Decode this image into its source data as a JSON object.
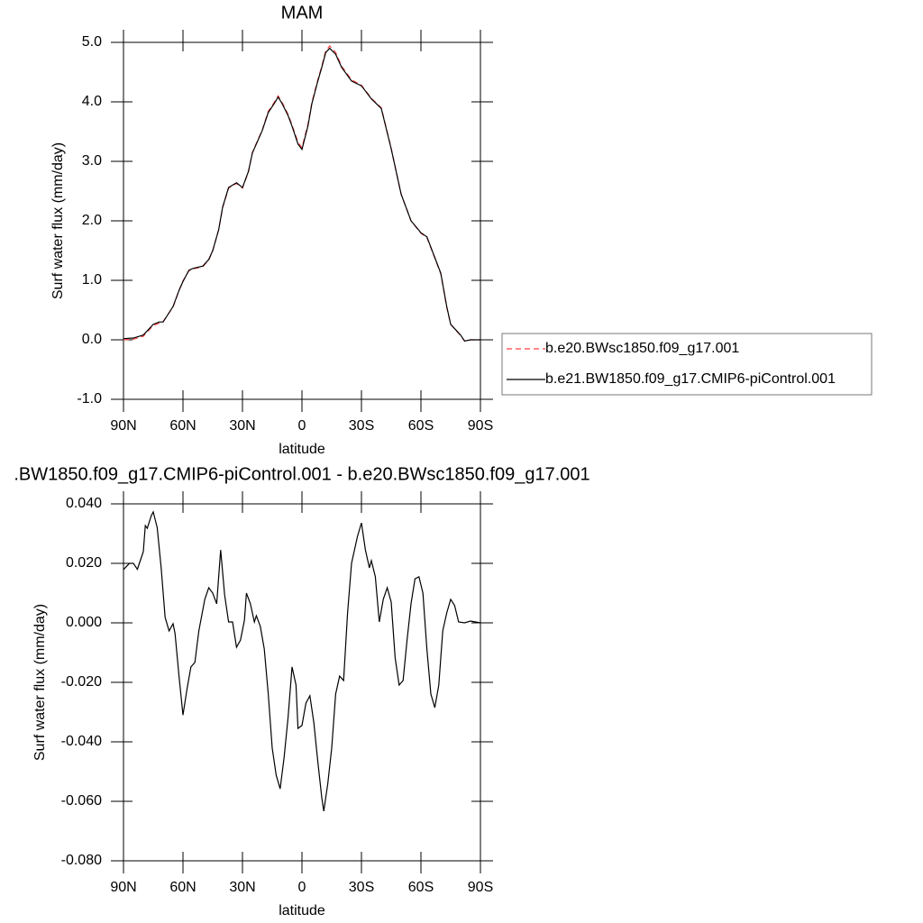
{
  "chart_data": [
    {
      "type": "line",
      "title": "MAM",
      "xlabel": "latitude",
      "ylabel": "Surf water flux (mm/day)",
      "xlim": [
        90,
        -90
      ],
      "xticks": [
        {
          "value": 90,
          "label": "90N"
        },
        {
          "value": 60,
          "label": "60N"
        },
        {
          "value": 30,
          "label": "30N"
        },
        0,
        {
          "value": -30,
          "label": "30S"
        },
        {
          "value": -60,
          "label": "60S"
        },
        {
          "value": -90,
          "label": "90S"
        }
      ],
      "ylim": [
        -1,
        5
      ],
      "yticks": [
        {
          "value": -1,
          "label": "-1.0"
        },
        {
          "value": 0,
          "label": "0.0"
        },
        {
          "value": 1,
          "label": "1.0"
        },
        {
          "value": 2,
          "label": "2.0"
        },
        {
          "value": 3,
          "label": "3.0"
        },
        {
          "value": 4,
          "label": "4.0"
        },
        {
          "value": 5,
          "label": "5.0"
        }
      ],
      "legend": "right",
      "x": [
        90,
        85,
        80,
        75,
        72,
        70,
        65,
        62,
        60,
        57,
        55,
        50,
        47,
        45,
        42,
        40,
        37,
        35,
        33,
        30,
        27,
        25,
        20,
        17,
        14,
        12,
        10,
        7,
        5,
        2,
        0,
        -3,
        -5,
        -8,
        -10,
        -12,
        -14,
        -17,
        -20,
        -25,
        -30,
        -35,
        -40,
        -45,
        -50,
        -55,
        -60,
        -63,
        -66,
        -70,
        -73,
        -75,
        -80,
        -82,
        -85,
        -90
      ],
      "series": [
        {
          "name": "b.e20.BWsc1850.f09_g17.001",
          "color": "#ff4040",
          "linestyle": "dashed",
          "values": [
            0.0,
            0.01,
            0.06,
            0.24,
            0.28,
            0.31,
            0.55,
            0.83,
            0.99,
            1.16,
            1.19,
            1.23,
            1.34,
            1.5,
            1.85,
            2.22,
            2.55,
            2.59,
            2.63,
            2.55,
            2.82,
            3.15,
            3.53,
            3.84,
            3.99,
            4.1,
            3.99,
            3.79,
            3.61,
            3.32,
            3.23,
            3.62,
            3.99,
            4.37,
            4.6,
            4.86,
            4.94,
            4.83,
            4.6,
            4.37,
            4.28,
            4.06,
            3.9,
            3.22,
            2.45,
            2.0,
            1.79,
            1.72,
            1.46,
            1.11,
            0.55,
            0.26,
            0.07,
            -0.02,
            0.0,
            0.0
          ]
        },
        {
          "name": "b.e21.BW1850.f09_g17.CMIP6-piControl.001",
          "color": "#000000",
          "linestyle": "solid",
          "values": [
            0.02,
            0.03,
            0.08,
            0.26,
            0.3,
            0.3,
            0.56,
            0.83,
            0.98,
            1.17,
            1.2,
            1.24,
            1.35,
            1.5,
            1.85,
            2.23,
            2.56,
            2.6,
            2.64,
            2.56,
            2.83,
            3.14,
            3.52,
            3.82,
            3.97,
            4.08,
            3.97,
            3.77,
            3.59,
            3.29,
            3.2,
            3.59,
            3.97,
            4.35,
            4.58,
            4.83,
            4.9,
            4.8,
            4.58,
            4.35,
            4.27,
            4.05,
            3.89,
            3.21,
            2.45,
            2.0,
            1.8,
            1.73,
            1.47,
            1.12,
            0.56,
            0.26,
            0.08,
            -0.02,
            0.0,
            0.0
          ]
        }
      ]
    },
    {
      "type": "line",
      "title": ".BW1850.f09_g17.CMIP6-piControl.001 - b.e20.BWsc1850.f09_g17.001",
      "xlabel": "latitude",
      "ylabel": "Surf water flux (mm/day)",
      "xlim": [
        90,
        -90
      ],
      "xticks": [
        {
          "value": 90,
          "label": "90N"
        },
        {
          "value": 60,
          "label": "60N"
        },
        {
          "value": 30,
          "label": "30N"
        },
        0,
        {
          "value": -30,
          "label": "30S"
        },
        {
          "value": -60,
          "label": "60S"
        },
        {
          "value": -90,
          "label": "90S"
        }
      ],
      "ylim": [
        -0.08,
        0.04
      ],
      "yticks": [
        {
          "value": -0.08,
          "label": "-0.080"
        },
        {
          "value": -0.06,
          "label": "-0.060"
        },
        {
          "value": -0.04,
          "label": "-0.040"
        },
        {
          "value": -0.02,
          "label": "-0.020"
        },
        {
          "value": 0,
          "label": "0.000"
        },
        {
          "value": 0.02,
          "label": "0.020"
        },
        {
          "value": 0.04,
          "label": "0.040"
        }
      ],
      "x": [
        90,
        87,
        85,
        84,
        83,
        82,
        80,
        79,
        78,
        76,
        75,
        73,
        71,
        69,
        67,
        65,
        64,
        62,
        60,
        58,
        56,
        54,
        52,
        49,
        47,
        45,
        43,
        41,
        39,
        37,
        35,
        33,
        31,
        29,
        28,
        26,
        24,
        23,
        21,
        19,
        17,
        15,
        13,
        11,
        9,
        7,
        5,
        3,
        2,
        0,
        -2,
        -4,
        -6,
        -8,
        -10,
        -11,
        -13,
        -15,
        -17,
        -19,
        -21,
        -23,
        -25,
        -28,
        -30,
        -32,
        -34,
        -35,
        -37,
        -39,
        -41,
        -43,
        -45,
        -47,
        -49,
        -51,
        -53,
        -55,
        -57,
        -59,
        -61,
        -63,
        -65,
        -67,
        -69,
        -71,
        -73,
        -75,
        -77,
        -79,
        -82,
        -85,
        -90
      ],
      "series": [
        {
          "name": null,
          "color": "#000000",
          "linestyle": "solid",
          "values": [
            0.0179,
            0.02,
            0.02,
            0.019,
            0.018,
            0.02,
            0.0239,
            0.0327,
            0.0318,
            0.036,
            0.0373,
            0.032,
            0.0185,
            0.0018,
            -0.0027,
            -0.0003,
            -0.0036,
            -0.0179,
            -0.031,
            -0.0224,
            -0.0148,
            -0.0133,
            -0.0027,
            0.0079,
            0.0118,
            0.01,
            0.0064,
            0.0245,
            0.0094,
            0.0003,
            0.0003,
            -0.0082,
            -0.0058,
            0.0009,
            0.01,
            0.0064,
            0.0003,
            0.0024,
            -0.0012,
            -0.0088,
            -0.0239,
            -0.0421,
            -0.0512,
            -0.0558,
            -0.0452,
            -0.0318,
            -0.0148,
            -0.0209,
            -0.0355,
            -0.0345,
            -0.027,
            -0.0245,
            -0.0336,
            -0.0467,
            -0.0588,
            -0.0633,
            -0.0542,
            -0.0421,
            -0.0239,
            -0.0179,
            -0.0194,
            0.0033,
            0.02,
            0.0291,
            0.0336,
            0.0245,
            0.0185,
            0.0209,
            0.0155,
            0.0003,
            0.0079,
            0.0118,
            0.007,
            -0.0118,
            -0.0209,
            -0.0194,
            -0.0058,
            0.0064,
            0.0148,
            0.0155,
            0.01,
            -0.0088,
            -0.0239,
            -0.0285,
            -0.0209,
            -0.0027,
            0.0033,
            0.0079,
            0.0058,
            0.0003,
            0,
            0.0006,
            0
          ]
        }
      ]
    }
  ]
}
